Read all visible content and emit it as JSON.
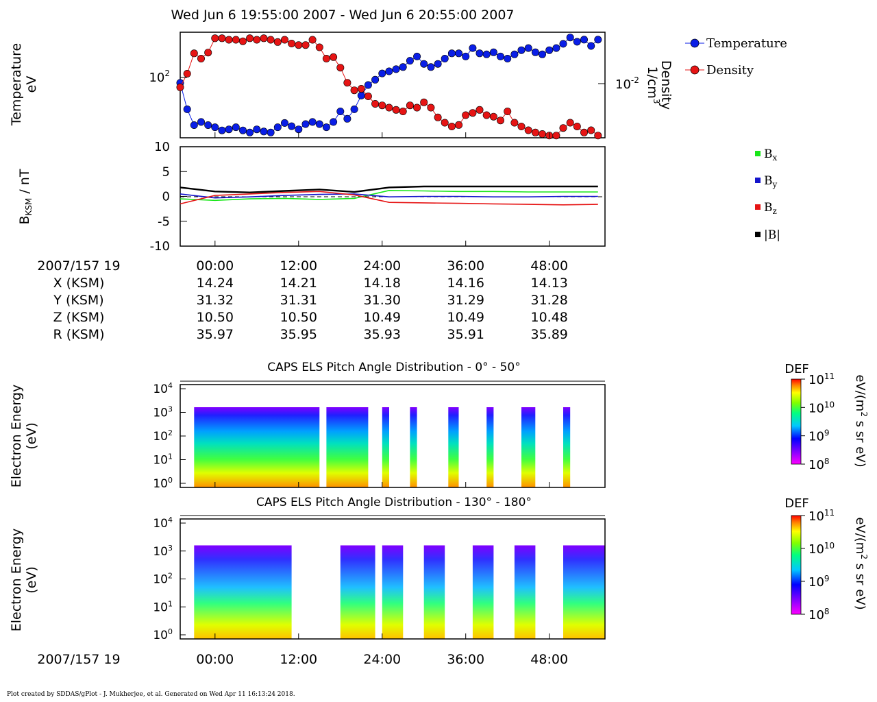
{
  "title": "Wed Jun 6 19:55:00 2007 - Wed Jun 6 20:55:00 2007",
  "footer": "Plot created by SDDAS/gPlot - J. Mukherjee, et al.  Generated on Wed Apr 11 16:13:24 2018.",
  "colors": {
    "temperature": "#0a1ee6",
    "density": "#e61414",
    "bx": "#19e619",
    "by": "#1414cc",
    "bz": "#e61414",
    "bmag": "#000000"
  },
  "ephemeris": {
    "label": "2007/157 19",
    "rows": [
      {
        "name": "X (KSM)",
        "values": [
          "14.24",
          "14.21",
          "14.18",
          "14.16",
          "14.13"
        ]
      },
      {
        "name": "Y (KSM)",
        "values": [
          "31.32",
          "31.31",
          "31.30",
          "31.29",
          "31.28"
        ]
      },
      {
        "name": "Z (KSM)",
        "values": [
          "10.50",
          "10.50",
          "10.49",
          "10.49",
          "10.48"
        ]
      },
      {
        "name": "R (KSM)",
        "values": [
          "35.97",
          "35.95",
          "35.93",
          "35.91",
          "35.89"
        ]
      }
    ]
  },
  "chart_data": [
    {
      "type": "scatter",
      "ylabel": [
        "Temperature",
        "eV"
      ],
      "y2label": [
        "Density",
        "1/cm3"
      ],
      "ytick_label": "10^2",
      "y2tick_label": "10^-2",
      "x_range_minutes": [
        -5,
        56
      ],
      "legend_position": "right",
      "series": [
        {
          "name": "Temperature",
          "y_axis": "left",
          "scale": "log",
          "ylim_log10": [
            1.45,
            2.45
          ],
          "x": [
            -5,
            -4,
            -3,
            -2,
            -1,
            0,
            1,
            2,
            3,
            4,
            5,
            6,
            7,
            8,
            9,
            10,
            11,
            12,
            13,
            14,
            15,
            16,
            17,
            18,
            19,
            20,
            21,
            22,
            23,
            24,
            25,
            26,
            27,
            28,
            29,
            30,
            31,
            32,
            33,
            34,
            35,
            36,
            37,
            38,
            39,
            40,
            41,
            42,
            43,
            44,
            45,
            46,
            47,
            48,
            49,
            50,
            51,
            52,
            53,
            54,
            55
          ],
          "log10_values": [
            1.97,
            1.72,
            1.57,
            1.6,
            1.57,
            1.55,
            1.52,
            1.53,
            1.55,
            1.52,
            1.5,
            1.53,
            1.51,
            1.5,
            1.55,
            1.59,
            1.56,
            1.53,
            1.58,
            1.6,
            1.58,
            1.55,
            1.6,
            1.7,
            1.63,
            1.72,
            1.85,
            1.95,
            2.0,
            2.06,
            2.08,
            2.1,
            2.12,
            2.18,
            2.22,
            2.15,
            2.12,
            2.15,
            2.2,
            2.25,
            2.25,
            2.22,
            2.3,
            2.25,
            2.24,
            2.26,
            2.22,
            2.2,
            2.24,
            2.28,
            2.3,
            2.26,
            2.24,
            2.28,
            2.3,
            2.34,
            2.4,
            2.36,
            2.38,
            2.32,
            2.38
          ]
        },
        {
          "name": "Density",
          "y_axis": "right",
          "scale": "log",
          "ylim_log10": [
            -2.75,
            -1.35
          ],
          "x": [
            -5,
            -4,
            -3,
            -2,
            -1,
            0,
            1,
            2,
            3,
            4,
            5,
            6,
            7,
            8,
            9,
            10,
            11,
            12,
            13,
            14,
            15,
            16,
            17,
            18,
            19,
            20,
            21,
            22,
            23,
            24,
            25,
            26,
            27,
            28,
            29,
            30,
            31,
            32,
            33,
            34,
            35,
            36,
            37,
            38,
            39,
            40,
            41,
            42,
            43,
            44,
            45,
            46,
            47,
            48,
            49,
            50,
            51,
            52,
            53,
            54,
            55
          ],
          "log10_values": [
            -2.08,
            -1.9,
            -1.63,
            -1.7,
            -1.62,
            -1.43,
            -1.43,
            -1.45,
            -1.45,
            -1.47,
            -1.43,
            -1.45,
            -1.43,
            -1.45,
            -1.48,
            -1.45,
            -1.5,
            -1.52,
            -1.52,
            -1.45,
            -1.55,
            -1.7,
            -1.68,
            -1.82,
            -2.02,
            -2.12,
            -2.1,
            -2.2,
            -2.3,
            -2.32,
            -2.35,
            -2.38,
            -2.4,
            -2.32,
            -2.35,
            -2.28,
            -2.35,
            -2.48,
            -2.55,
            -2.6,
            -2.58,
            -2.45,
            -2.42,
            -2.38,
            -2.45,
            -2.47,
            -2.52,
            -2.4,
            -2.55,
            -2.6,
            -2.65,
            -2.68,
            -2.7,
            -2.72,
            -2.72,
            -2.62,
            -2.55,
            -2.6,
            -2.68,
            -2.65,
            -2.72
          ]
        }
      ]
    },
    {
      "type": "line",
      "ylabel": "BKSM / nT",
      "ylim": [
        -10,
        10
      ],
      "yticks": [
        "10",
        "5",
        "0",
        "-5",
        "-10"
      ],
      "x_range_minutes": [
        -5,
        56
      ],
      "legend_position": "right",
      "x": [
        -5,
        0,
        5,
        10,
        15,
        20,
        25,
        30,
        35,
        40,
        45,
        50,
        55
      ],
      "series": [
        {
          "name": "Bx",
          "legend_sub": "x",
          "values": [
            -0.5,
            -0.8,
            -0.5,
            -0.4,
            -0.6,
            -0.4,
            1.2,
            1.1,
            1.0,
            1.0,
            0.9,
            0.9,
            0.9
          ]
        },
        {
          "name": "By",
          "legend_sub": "y",
          "values": [
            0.5,
            -0.3,
            -0.1,
            0.2,
            0.4,
            0.5,
            -0.1,
            0.0,
            0.0,
            -0.1,
            -0.1,
            0.0,
            0.0
          ]
        },
        {
          "name": "Bz",
          "legend_sub": "z",
          "values": [
            -1.5,
            0.2,
            0.5,
            0.8,
            1.0,
            0.3,
            -1.2,
            -1.3,
            -1.4,
            -1.5,
            -1.6,
            -1.7,
            -1.6
          ]
        },
        {
          "name": "|B|",
          "values": [
            1.8,
            1.0,
            0.8,
            1.1,
            1.4,
            0.9,
            1.8,
            2.0,
            2.0,
            2.0,
            2.0,
            2.0,
            2.0
          ]
        }
      ]
    },
    {
      "type": "heatmap",
      "title": "CAPS ELS Pitch Angle Distribution - 0° - 50°",
      "ylabel": [
        "Electron Energy",
        "(eV)"
      ],
      "yticks": [
        "10^0",
        "10^1",
        "10^2",
        "10^3",
        "10^4"
      ],
      "colorbar": {
        "label": "DEF",
        "units": "eV/(m2 s sr eV)",
        "ticks": [
          "10^8",
          "10^9",
          "10^10",
          "10^11"
        ]
      },
      "coverage_minutes": [
        [
          -3,
          15
        ],
        [
          16,
          22
        ],
        [
          24,
          25
        ],
        [
          28,
          29
        ],
        [
          33.5,
          35
        ],
        [
          39,
          40
        ],
        [
          44,
          46
        ],
        [
          50,
          51
        ]
      ]
    },
    {
      "type": "heatmap",
      "title": "CAPS ELS Pitch Angle Distribution - 130° - 180°",
      "ylabel": [
        "Electron Energy",
        "(eV)"
      ],
      "yticks": [
        "10^0",
        "10^1",
        "10^2",
        "10^3",
        "10^4"
      ],
      "colorbar": {
        "label": "DEF",
        "units": "eV/(m2 s sr eV)",
        "ticks": [
          "10^8",
          "10^9",
          "10^10",
          "10^11"
        ]
      },
      "coverage_minutes": [
        [
          -3,
          11
        ],
        [
          18,
          23
        ],
        [
          24,
          27
        ],
        [
          30,
          33
        ],
        [
          37,
          40
        ],
        [
          43,
          46
        ],
        [
          50,
          56
        ]
      ]
    }
  ],
  "x_axis": {
    "label": "2007/157 19",
    "ticks": [
      "00:00",
      "12:00",
      "24:00",
      "36:00",
      "48:00"
    ]
  }
}
